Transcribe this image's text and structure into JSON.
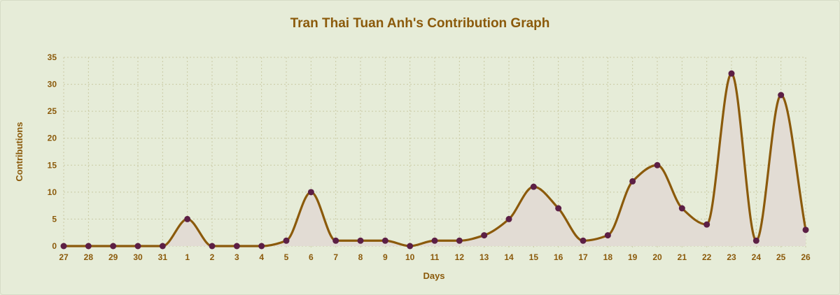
{
  "chart_data": {
    "type": "area",
    "title": "Tran Thai Tuan Anh's Contribution Graph",
    "xlabel": "Days",
    "ylabel": "Contributions",
    "categories": [
      "27",
      "28",
      "29",
      "30",
      "31",
      "1",
      "2",
      "3",
      "4",
      "5",
      "6",
      "7",
      "8",
      "9",
      "10",
      "11",
      "12",
      "13",
      "14",
      "15",
      "16",
      "17",
      "18",
      "19",
      "20",
      "21",
      "22",
      "23",
      "24",
      "25",
      "26"
    ],
    "series": [
      {
        "values": [
          0,
          0,
          0,
          0,
          0,
          5,
          0,
          0,
          0,
          1,
          10,
          1,
          1,
          1,
          0,
          1,
          1,
          2,
          5,
          11,
          7,
          1,
          2,
          12,
          15,
          7,
          4,
          32,
          1,
          28,
          3
        ]
      }
    ],
    "ylim": [
      0,
      35
    ],
    "yticks": [
      0,
      5,
      10,
      15,
      20,
      25,
      30,
      35
    ],
    "grid": true,
    "legend": "none",
    "colors": {
      "line": "#8b5a0b",
      "fill": "#e2dcd4",
      "point": "#5c1f45",
      "text": "#8b5a0b",
      "grid": "#c9c9a3",
      "background": "#e6ecd8"
    }
  }
}
